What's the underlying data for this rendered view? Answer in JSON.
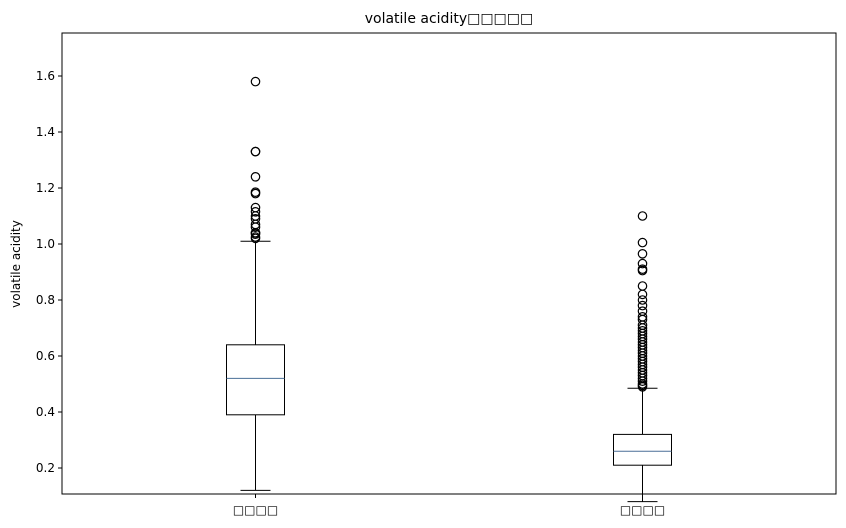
{
  "chart_data": {
    "type": "box",
    "title": "volatile acidity□□□□□",
    "ylabel": "volatile acidity",
    "xlabel": "",
    "ylim": [
      0.0,
      1.66
    ],
    "yticks": [
      0.2,
      0.4,
      0.6,
      0.8,
      1.0,
      1.2,
      1.4,
      1.6
    ],
    "ytick_labels": [
      "0.2",
      "0.4",
      "0.6",
      "0.8",
      "1.0",
      "1.2",
      "1.4",
      "1.6"
    ],
    "categories": [
      "□□□□",
      "□□□□"
    ],
    "grid": false,
    "boxes": [
      {
        "whisker_low": 0.12,
        "q1": 0.39,
        "median": 0.52,
        "q3": 0.64,
        "whisker_high": 1.01,
        "outliers": [
          1.02,
          1.025,
          1.035,
          1.04,
          1.04,
          1.06,
          1.07,
          1.09,
          1.1,
          1.115,
          1.13,
          1.18,
          1.185,
          1.24,
          1.33,
          1.33,
          1.58
        ]
      },
      {
        "whisker_low": 0.08,
        "q1": 0.21,
        "median": 0.26,
        "q3": 0.32,
        "whisker_high": 0.485,
        "outliers": [
          0.49,
          0.495,
          0.5,
          0.51,
          0.52,
          0.53,
          0.54,
          0.55,
          0.56,
          0.57,
          0.58,
          0.59,
          0.6,
          0.61,
          0.62,
          0.63,
          0.64,
          0.65,
          0.66,
          0.67,
          0.68,
          0.69,
          0.7,
          0.71,
          0.73,
          0.74,
          0.76,
          0.78,
          0.8,
          0.82,
          0.85,
          0.905,
          0.91,
          0.93,
          0.965,
          1.005,
          1.1
        ]
      }
    ],
    "colors": {
      "box": "#000000",
      "median": "#4a6f97",
      "outlier_edge": "#000000"
    }
  }
}
